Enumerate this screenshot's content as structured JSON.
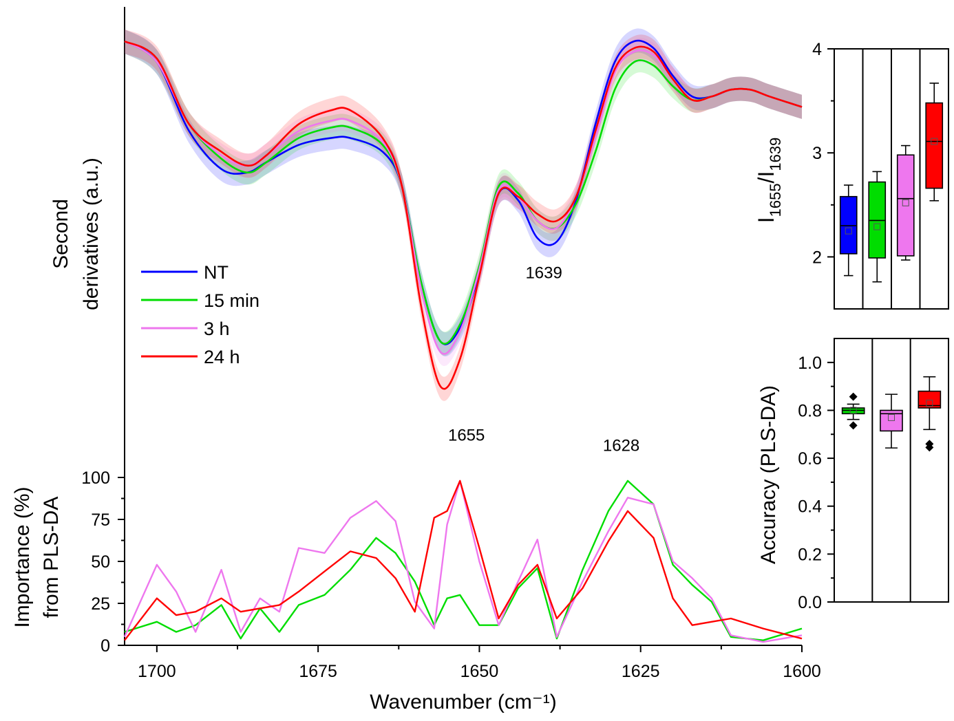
{
  "colors": {
    "NT": "#0000ff",
    "15 min": "#00dd00",
    "3 h": "#ee77ee",
    "24 h": "#ff0000"
  },
  "chart_data": [
    {
      "id": "spectra",
      "type": "line",
      "title": "",
      "xlabel": "Wavenumber (cm⁻¹)",
      "ylabel_line1": "Second",
      "ylabel_line2": "derivatives (a.u.)",
      "xlim": [
        1705,
        1600
      ],
      "ylim": [
        -1.0,
        0.1
      ],
      "x": [
        1705,
        1700,
        1695,
        1690,
        1686,
        1683,
        1678,
        1673,
        1670,
        1665,
        1662,
        1659,
        1656,
        1653,
        1650,
        1647,
        1644,
        1641,
        1638,
        1635,
        1632,
        1629,
        1626,
        1623,
        1620,
        1617,
        1614,
        1611,
        1608,
        1605,
        1600
      ],
      "series": [
        {
          "name": "NT",
          "values": [
            0.0,
            -0.06,
            -0.26,
            -0.37,
            -0.38,
            -0.35,
            -0.3,
            -0.28,
            -0.28,
            -0.32,
            -0.42,
            -0.7,
            -0.87,
            -0.83,
            -0.67,
            -0.44,
            -0.46,
            -0.57,
            -0.58,
            -0.46,
            -0.24,
            -0.06,
            0.0,
            -0.02,
            -0.1,
            -0.16,
            -0.16,
            -0.14,
            -0.14,
            -0.16,
            -0.19
          ]
        },
        {
          "name": "15 min",
          "values": [
            0.0,
            -0.06,
            -0.24,
            -0.34,
            -0.38,
            -0.35,
            -0.28,
            -0.25,
            -0.25,
            -0.3,
            -0.42,
            -0.7,
            -0.87,
            -0.82,
            -0.65,
            -0.42,
            -0.44,
            -0.52,
            -0.54,
            -0.47,
            -0.32,
            -0.14,
            -0.06,
            -0.07,
            -0.13,
            -0.17,
            -0.16,
            -0.14,
            -0.14,
            -0.16,
            -0.19
          ]
        },
        {
          "name": "3 h",
          "values": [
            0.0,
            -0.06,
            -0.24,
            -0.33,
            -0.36,
            -0.33,
            -0.26,
            -0.23,
            -0.23,
            -0.29,
            -0.42,
            -0.72,
            -0.9,
            -0.84,
            -0.66,
            -0.43,
            -0.45,
            -0.52,
            -0.54,
            -0.45,
            -0.28,
            -0.09,
            -0.03,
            -0.04,
            -0.11,
            -0.17,
            -0.16,
            -0.14,
            -0.14,
            -0.16,
            -0.19
          ]
        },
        {
          "name": "24 h",
          "values": [
            0.0,
            -0.05,
            -0.24,
            -0.32,
            -0.36,
            -0.33,
            -0.24,
            -0.2,
            -0.2,
            -0.28,
            -0.42,
            -0.77,
            -1.0,
            -0.92,
            -0.68,
            -0.44,
            -0.45,
            -0.5,
            -0.52,
            -0.45,
            -0.26,
            -0.08,
            -0.02,
            -0.03,
            -0.11,
            -0.17,
            -0.16,
            -0.14,
            -0.14,
            -0.16,
            -0.19
          ]
        }
      ],
      "band_halfwidth": 0.035,
      "annotations": [
        {
          "text": "1655",
          "x": 1652,
          "y": -1.14
        },
        {
          "text": "1639",
          "x": 1640,
          "y": -0.67
        }
      ]
    },
    {
      "id": "importance",
      "type": "line",
      "xlabel": "Wavenumber (cm⁻¹)",
      "ylabel_line1": "Importance (%)",
      "ylabel_line2": "from PLS-DA",
      "xlim": [
        1705,
        1600
      ],
      "ylim": [
        0,
        100
      ],
      "xticks": [
        1700,
        1675,
        1650,
        1625,
        1600
      ],
      "yticks": [
        0,
        25,
        50,
        75,
        100
      ],
      "x": [
        1705,
        1700,
        1697,
        1694,
        1690,
        1687,
        1684,
        1681,
        1678,
        1674,
        1670,
        1666,
        1663,
        1660,
        1657,
        1655,
        1653,
        1650,
        1647,
        1644,
        1641,
        1638,
        1634,
        1630,
        1627,
        1623,
        1620,
        1617,
        1614,
        1611,
        1606,
        1600
      ],
      "series": [
        {
          "name": "15 min",
          "values": [
            8,
            14,
            8,
            12,
            24,
            4,
            22,
            8,
            24,
            30,
            45,
            64,
            55,
            38,
            12,
            28,
            30,
            12,
            12,
            34,
            46,
            4,
            45,
            80,
            98,
            84,
            48,
            36,
            26,
            5,
            3,
            10
          ]
        },
        {
          "name": "3 h",
          "values": [
            5,
            48,
            32,
            8,
            45,
            8,
            28,
            20,
            58,
            55,
            76,
            86,
            74,
            26,
            10,
            72,
            98,
            50,
            12,
            38,
            63,
            5,
            38,
            68,
            88,
            84,
            50,
            40,
            28,
            6,
            2,
            6
          ]
        },
        {
          "name": "24 h",
          "values": [
            3,
            28,
            18,
            20,
            28,
            20,
            22,
            24,
            32,
            44,
            56,
            52,
            40,
            20,
            76,
            80,
            98,
            58,
            16,
            36,
            48,
            16,
            34,
            62,
            80,
            64,
            28,
            12,
            14,
            16,
            10,
            4
          ]
        }
      ],
      "annotations": [
        {
          "text": "1628",
          "x": 1628,
          "y": 110
        }
      ]
    },
    {
      "id": "ratio",
      "type": "box",
      "ylabel": "I1655/I1639",
      "ylabel_main": "I",
      "ylabel_sub1": "1655",
      "ylabel_slash": "/I",
      "ylabel_sub2": "1639",
      "ylim": [
        1.5,
        4
      ],
      "yticks": [
        2,
        3,
        4
      ],
      "groups": [
        {
          "name": "NT",
          "q1": 2.03,
          "median": 2.3,
          "q3": 2.58,
          "mean": 2.25,
          "whisker_low": 1.82,
          "whisker_high": 2.69
        },
        {
          "name": "15 min",
          "q1": 1.99,
          "median": 2.35,
          "q3": 2.72,
          "mean": 2.29,
          "whisker_low": 1.76,
          "whisker_high": 2.82
        },
        {
          "name": "3 h",
          "q1": 2.01,
          "median": 2.56,
          "q3": 2.98,
          "mean": 2.52,
          "whisker_low": 1.97,
          "whisker_high": 3.07
        },
        {
          "name": "24 h",
          "q1": 2.66,
          "median": 3.11,
          "q3": 3.48,
          "mean": 3.11,
          "whisker_low": 2.54,
          "whisker_high": 3.67
        }
      ]
    },
    {
      "id": "accuracy",
      "type": "box",
      "ylabel": "Accuracy (PLS-DA)",
      "ylim": [
        0,
        1.1
      ],
      "yticks": [
        "0.0",
        "0.2",
        "0.4",
        "0.6",
        "0.8",
        "1.0"
      ],
      "groups": [
        {
          "name": "15 min",
          "q1": 0.786,
          "median": 0.8,
          "q3": 0.81,
          "mean": 0.8,
          "whisker_low": 0.762,
          "whisker_high": 0.826,
          "outliers": [
            0.857,
            0.737
          ]
        },
        {
          "name": "3 h",
          "q1": 0.714,
          "median": 0.786,
          "q3": 0.8,
          "mean": 0.77,
          "whisker_low": 0.643,
          "whisker_high": 0.867,
          "outliers": []
        },
        {
          "name": "24 h",
          "q1": 0.81,
          "median": 0.82,
          "q3": 0.88,
          "mean": 0.83,
          "whisker_low": 0.72,
          "whisker_high": 0.94,
          "outliers": [
            0.66,
            0.645
          ]
        }
      ]
    }
  ],
  "legend": [
    {
      "label": "NT",
      "series": "NT"
    },
    {
      "label": "15 min",
      "series": "15 min"
    },
    {
      "label": "3 h",
      "series": "3 h"
    },
    {
      "label": "24 h",
      "series": "24 h"
    }
  ]
}
